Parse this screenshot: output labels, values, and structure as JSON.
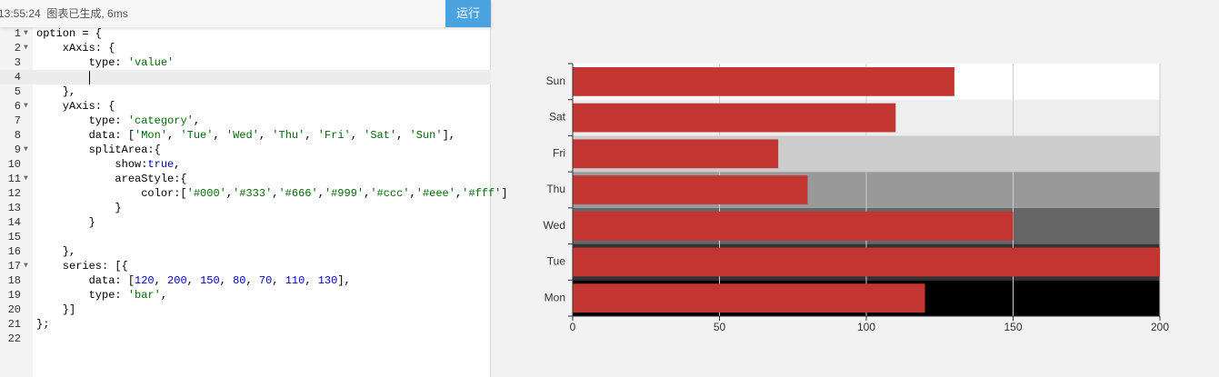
{
  "toolbar": {
    "status": "13:55:24  图表已生成, 6ms",
    "run_button": "运行"
  },
  "editor": {
    "lines": [
      {
        "number": 1,
        "code": "option = {",
        "fold": true
      },
      {
        "number": 2,
        "code": "    xAxis: {",
        "fold": true
      },
      {
        "number": 3,
        "code": "        type: 'value'"
      },
      {
        "number": 4
      },
      {
        "number": 5,
        "code": "    },"
      },
      {
        "number": 6,
        "code": "    yAxis: {",
        "fold": true
      },
      {
        "number": 7,
        "code": "        type: 'category',"
      },
      {
        "number": 8,
        "code": "        data: ['Mon', 'Tue', 'Wed', 'Thu', 'Fri', 'Sat', 'Sun'],"
      },
      {
        "number": 9,
        "code": "        splitArea:{",
        "fold": true
      },
      {
        "number": 10,
        "code": "            show:true,"
      },
      {
        "number": 11,
        "code": "            areaStyle:{",
        "fold": true
      },
      {
        "number": 12,
        "code": "                color:['#000','#333','#666','#999','#ccc','#eee','#fff']"
      },
      {
        "number": 13,
        "code": "            }"
      },
      {
        "number": 14,
        "code": "        }"
      },
      {
        "number": 15
      },
      {
        "number": 16,
        "code": "    },"
      },
      {
        "number": 17,
        "code": "    series: [{",
        "fold": true
      },
      {
        "number": 18,
        "code": "        data: [120, 200, 150, 80, 70, 110, 130],"
      },
      {
        "number": 19,
        "code": "        type: 'bar',"
      },
      {
        "number": 20,
        "code": "    }]"
      },
      {
        "number": 21,
        "code": "};"
      },
      {
        "number": 22
      }
    ]
  },
  "chart_data": {
    "type": "hbar",
    "categories": [
      "Mon",
      "Tue",
      "Wed",
      "Thu",
      "Fri",
      "Sat",
      "Sun"
    ],
    "values": [
      120,
      200,
      150,
      80,
      70,
      110,
      130
    ],
    "color": "#c23531",
    "split_area_colors": [
      "#000",
      "#333",
      "#666",
      "#999",
      "#ccc",
      "#eee",
      "#fff"
    ],
    "xlim": [
      0,
      200
    ],
    "xticks": [
      0,
      50,
      100,
      150,
      200
    ],
    "grid": true
  }
}
